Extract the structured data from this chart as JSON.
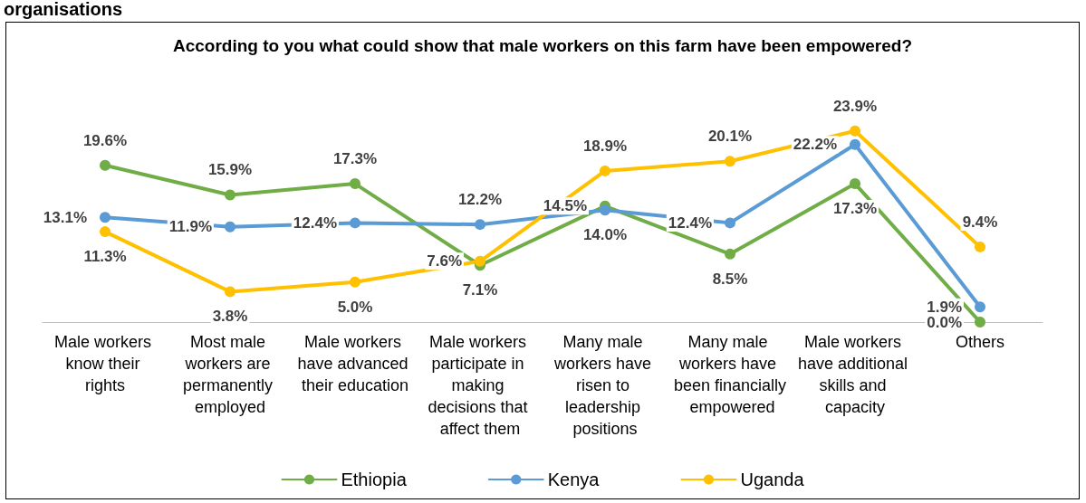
{
  "chart_data": {
    "type": "line",
    "title": "According to you what could show that male workers on this farm have been empowered?",
    "annotations": [
      "organisations"
    ],
    "categories": [
      "Male workers know their rights",
      "Most male workers are permanently employed",
      "Male workers have advanced their education",
      "Male workers participate in making decisions that affect them",
      "Many male workers have risen to leadership positions",
      "Many male workers have been financially empowered",
      "Male workers have additional skills and capacity",
      "Others"
    ],
    "series": [
      {
        "name": "Ethiopia",
        "color": "#70ad47",
        "values": [
          19.6,
          15.9,
          17.3,
          7.1,
          14.5,
          8.5,
          17.3,
          0.0
        ],
        "value_labels": [
          "19.6%",
          "15.9%",
          "17.3%",
          "7.1%",
          "14.5%",
          "8.5%",
          "17.3%",
          "0.0%"
        ]
      },
      {
        "name": "Kenya",
        "color": "#5b9bd5",
        "values": [
          13.1,
          11.9,
          12.4,
          12.2,
          14.0,
          12.4,
          22.2,
          1.9
        ],
        "value_labels": [
          "13.1%",
          "11.9%",
          "12.4%",
          "12.2%",
          "14.0%",
          "12.4%",
          "22.2%",
          "1.9%"
        ]
      },
      {
        "name": "Uganda",
        "color": "#ffc000",
        "values": [
          11.3,
          3.8,
          5.0,
          7.6,
          18.9,
          20.1,
          23.9,
          9.4
        ],
        "value_labels": [
          "11.3%",
          "3.8%",
          "5.0%",
          "7.6%",
          "18.9%",
          "20.1%",
          "23.9%",
          "9.4%"
        ]
      }
    ],
    "tick_labels": "x",
    "grid": false,
    "legend": "bottom",
    "marker": "circle",
    "line_style": "solid"
  }
}
